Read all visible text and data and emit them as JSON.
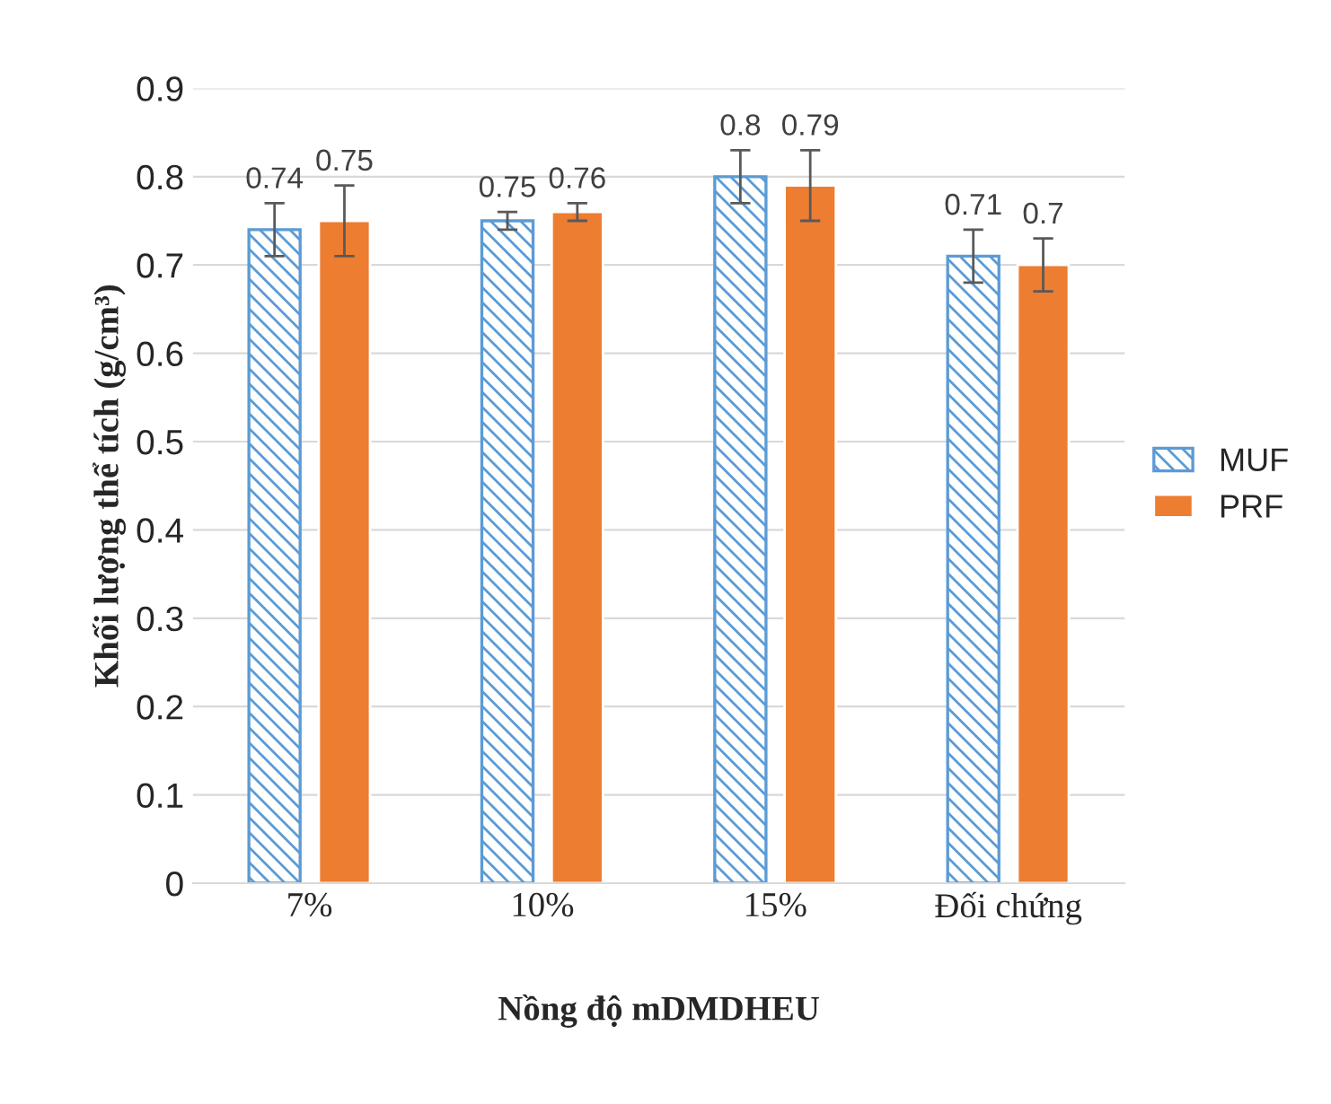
{
  "chart_data": {
    "type": "bar",
    "xlabel": "Nồng độ mDMDHEU",
    "ylabel": "Khối lượng thể tích (g/cm³)",
    "categories": [
      "7%",
      "10%",
      "15%",
      "Đối chứng"
    ],
    "series": [
      {
        "name": "MUF",
        "color": "#5b9bd5",
        "values": [
          0.74,
          0.75,
          0.8,
          0.71
        ],
        "errors": [
          0.03,
          0.01,
          0.03,
          0.03
        ]
      },
      {
        "name": "PRF",
        "color": "#ed7d31",
        "values": [
          0.75,
          0.76,
          0.79,
          0.7
        ],
        "errors": [
          0.04,
          0.01,
          0.04,
          0.03
        ]
      }
    ],
    "ylim": [
      0,
      0.9
    ],
    "yticks": [
      0,
      0.1,
      0.2,
      0.3,
      0.4,
      0.5,
      0.6,
      0.7,
      0.8,
      0.9
    ],
    "grid": "y",
    "legend": "right",
    "data_labels": true
  }
}
